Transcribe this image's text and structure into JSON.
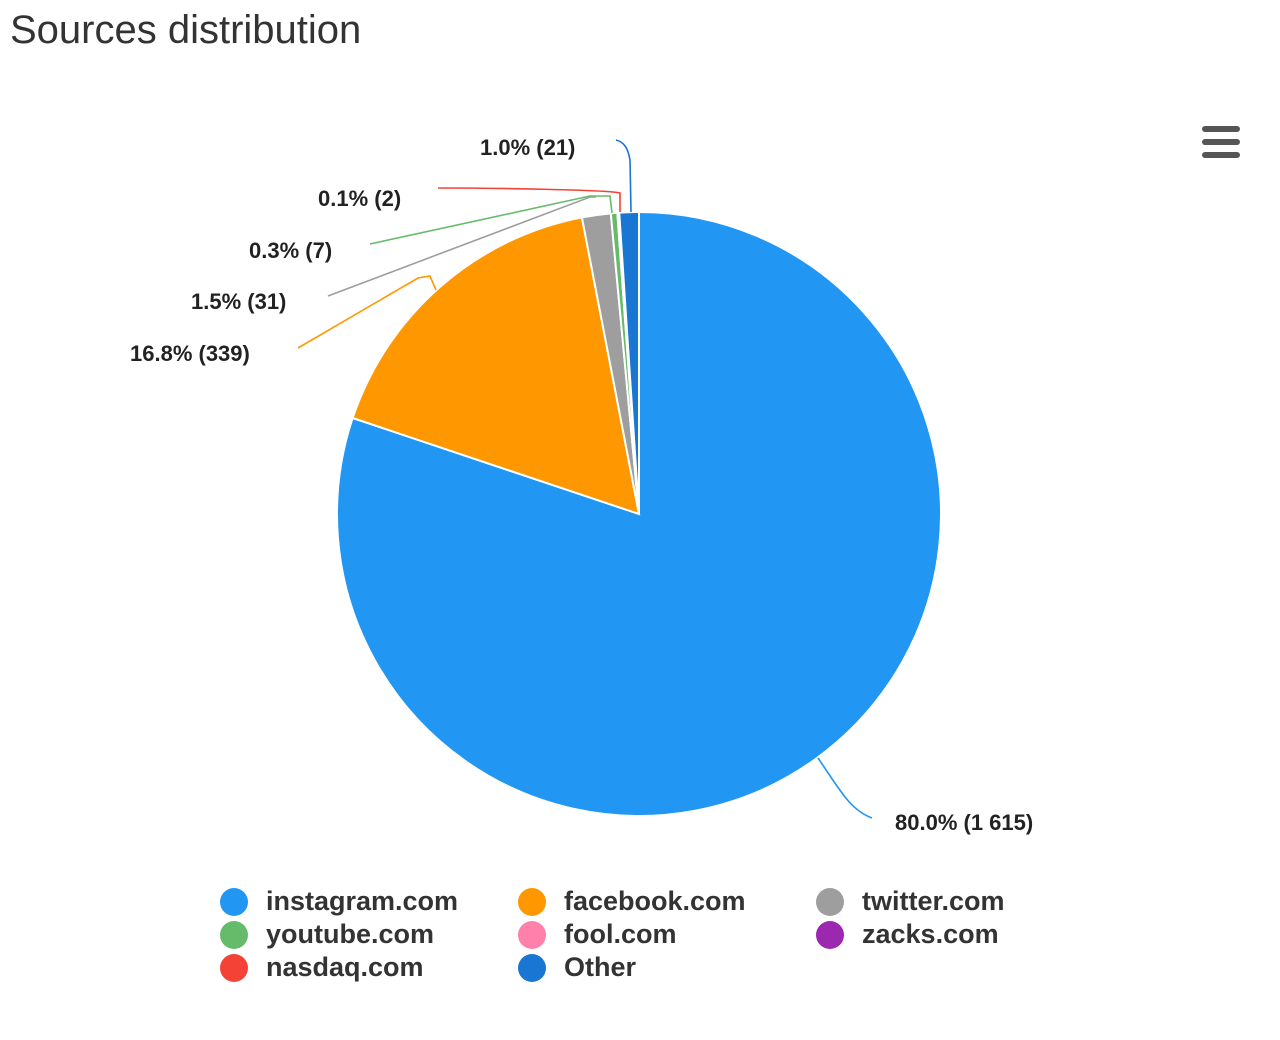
{
  "title": "Sources distribution",
  "menu": {
    "icon": "hamburger-menu-icon"
  },
  "chart_data": {
    "type": "pie",
    "title": "Sources distribution",
    "categories": [
      "instagram.com",
      "facebook.com",
      "twitter.com",
      "youtube.com",
      "fool.com",
      "zacks.com",
      "nasdaq.com",
      "Other"
    ],
    "values": [
      1615,
      339,
      31,
      7,
      0,
      0,
      2,
      21
    ],
    "percentages": [
      80.0,
      16.8,
      1.5,
      0.3,
      0.0,
      0.0,
      0.1,
      1.0
    ],
    "colors": [
      "#2196F3",
      "#FF9800",
      "#9E9E9E",
      "#66BB6A",
      "#FF80AB",
      "#9C27B0",
      "#F44336",
      "#1976D2"
    ],
    "data_labels": {
      "instagram.com": "80.0% (1 615)",
      "facebook.com": "16.8% (339)",
      "twitter.com": "1.5% (31)",
      "youtube.com": "0.3% (7)",
      "nasdaq.com": "0.1% (2)",
      "Other": "1.0% (21)"
    },
    "legend_position": "bottom"
  },
  "labels": {
    "other": "1.0% (21)",
    "nasdaq": "0.1% (2)",
    "youtube": "0.3% (7)",
    "twitter": "1.5% (31)",
    "facebook": "16.8% (339)",
    "instagram": "80.0% (1 615)"
  },
  "legend": {
    "items": [
      {
        "label": "instagram.com",
        "color": "#2196F3"
      },
      {
        "label": "facebook.com",
        "color": "#FF9800"
      },
      {
        "label": "twitter.com",
        "color": "#9E9E9E"
      },
      {
        "label": "youtube.com",
        "color": "#66BB6A"
      },
      {
        "label": "fool.com",
        "color": "#FF80AB"
      },
      {
        "label": "zacks.com",
        "color": "#9C27B0"
      },
      {
        "label": "nasdaq.com",
        "color": "#F44336"
      },
      {
        "label": "Other",
        "color": "#1976D2"
      }
    ]
  }
}
